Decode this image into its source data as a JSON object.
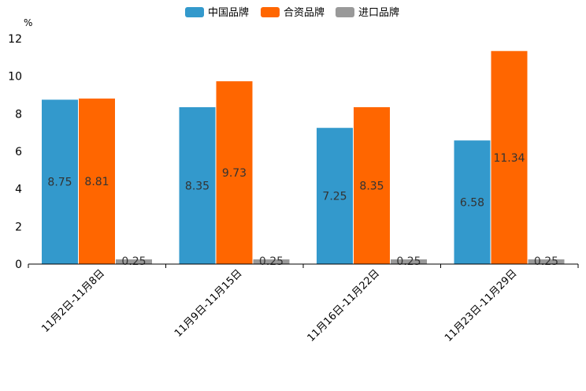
{
  "chart_data": {
    "type": "bar",
    "title": "",
    "ylabel": "%",
    "xlabel": "",
    "ylim": [
      0,
      12
    ],
    "yticks": [
      0,
      2,
      4,
      6,
      8,
      10,
      12
    ],
    "categories": [
      "11月2日-11月8日",
      "11月9日-11月15日",
      "11月16日-11月22日",
      "11月23日-11月29日"
    ],
    "series": [
      {
        "name": "中国品牌",
        "color": "#3399cc",
        "values": [
          8.75,
          8.35,
          7.25,
          6.58
        ],
        "labels": [
          "8.75",
          "8.35",
          "7.25",
          "6.58"
        ]
      },
      {
        "name": "合资品牌",
        "color": "#ff6600",
        "values": [
          8.81,
          9.73,
          8.35,
          11.34
        ],
        "labels": [
          "8.81",
          "9.73",
          "8.35",
          "11.34"
        ]
      },
      {
        "name": "进口品牌",
        "color": "#999999",
        "values": [
          0.25,
          0.25,
          0.25,
          0.25
        ],
        "labels": [
          "0.25",
          "0.25",
          "0.25",
          "0.25"
        ]
      }
    ],
    "legend_position": "top-center",
    "grid": false
  }
}
